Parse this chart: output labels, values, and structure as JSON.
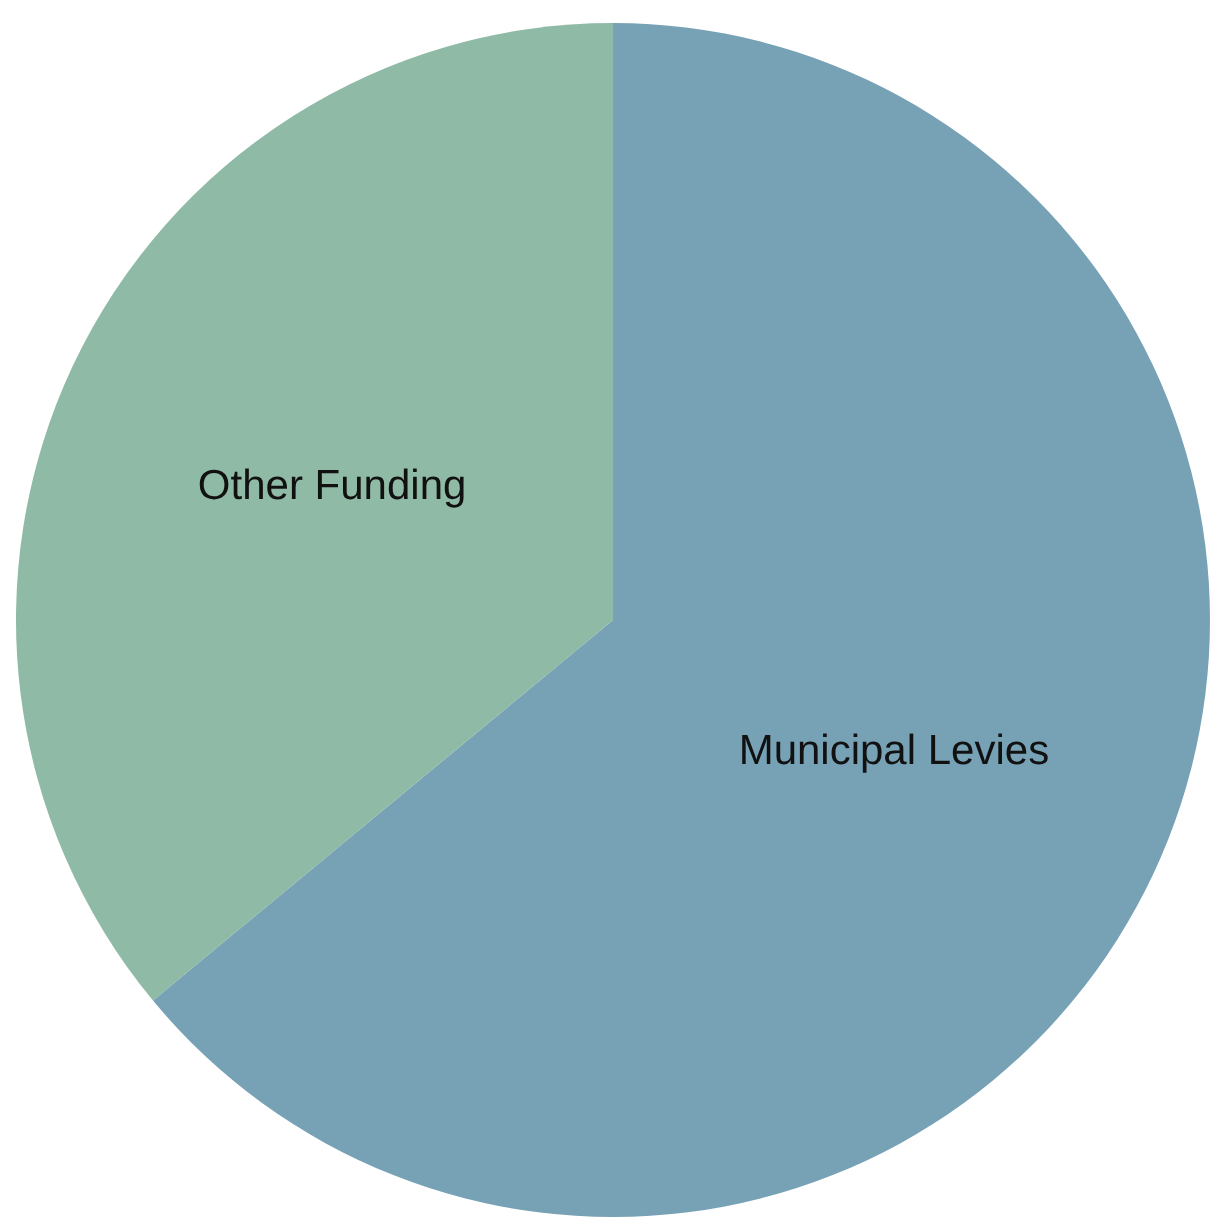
{
  "chart_data": {
    "type": "pie",
    "categories": [
      "Municipal Levies",
      "Other Funding"
    ],
    "values": [
      64,
      36
    ],
    "colors": [
      "#77a2b6",
      "#8fbaa6"
    ],
    "legend": false
  }
}
